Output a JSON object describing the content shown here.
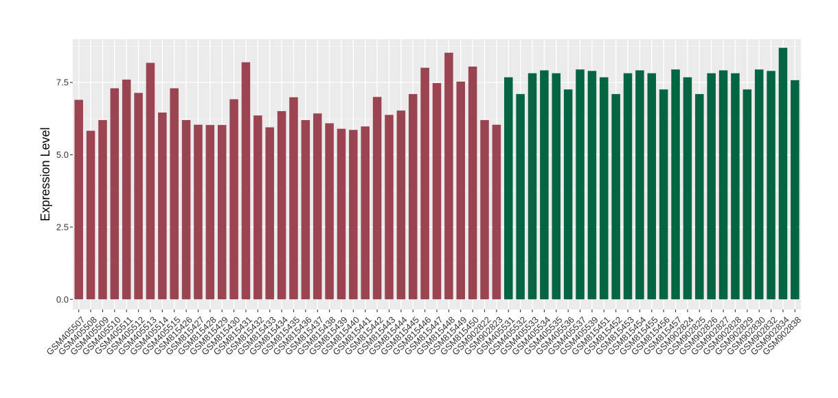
{
  "chart_data": {
    "type": "bar",
    "title": "",
    "xlabel": "",
    "ylabel": "Expression Level",
    "ylim": [
      -0.35,
      9.0
    ],
    "yticks": [
      0.0,
      2.5,
      5.0,
      7.5
    ],
    "ytick_labels": [
      "0.0",
      "2.5",
      "5.0",
      "7.5"
    ],
    "grid": true,
    "legend": "none",
    "colors": {
      "panel": "#EBEBEB",
      "grid_major": "#FFFFFF",
      "grid_minor": "#F5F5F5",
      "group_a": "#9A4451",
      "group_b": "#036541"
    },
    "categories": [
      "GSM405507",
      "GSM405508",
      "GSM405509",
      "GSM405510",
      "GSM405511",
      "GSM405512",
      "GSM405513",
      "GSM405514",
      "GSM405515",
      "GSM815426",
      "GSM815427",
      "GSM815428",
      "GSM815429",
      "GSM815430",
      "GSM815431",
      "GSM815432",
      "GSM815433",
      "GSM815434",
      "GSM815435",
      "GSM815436",
      "GSM815437",
      "GSM815438",
      "GSM815439",
      "GSM815440",
      "GSM815441",
      "GSM815442",
      "GSM815443",
      "GSM815444",
      "GSM815445",
      "GSM815446",
      "GSM815447",
      "GSM815448",
      "GSM815449",
      "GSM815450",
      "GSM902822",
      "GSM902823",
      "GSM405531",
      "GSM405532",
      "GSM405533",
      "GSM405534",
      "GSM405535",
      "GSM405536",
      "GSM405537",
      "GSM405539",
      "GSM815451",
      "GSM815452",
      "GSM815453",
      "GSM815454",
      "GSM815455",
      "GSM815456",
      "GSM815457",
      "GSM902824",
      "GSM902825",
      "GSM902826",
      "GSM902827",
      "GSM902828",
      "GSM902829",
      "GSM902830",
      "GSM902832",
      "GSM902834",
      "GSM902838"
    ],
    "values": [
      6.9,
      5.83,
      6.2,
      7.3,
      7.6,
      7.14,
      8.18,
      6.46,
      7.3,
      6.2,
      6.04,
      6.03,
      6.03,
      6.92,
      8.2,
      6.36,
      5.95,
      6.51,
      6.99,
      6.2,
      6.43,
      6.09,
      5.9,
      5.86,
      5.98,
      7.0,
      6.38,
      6.53,
      7.1,
      8.01,
      7.48,
      8.53,
      7.53,
      8.05,
      6.2,
      6.04,
      7.68,
      7.1,
      7.82,
      7.92,
      7.82,
      7.26,
      7.95,
      7.9,
      7.68,
      7.1,
      7.82,
      7.92,
      7.82,
      7.26,
      7.95,
      7.68,
      7.1,
      7.82,
      7.92,
      7.82,
      7.26,
      7.95,
      7.9,
      8.7,
      7.58
    ],
    "bar_groups": [
      "a",
      "a",
      "a",
      "a",
      "a",
      "a",
      "a",
      "a",
      "a",
      "a",
      "a",
      "a",
      "a",
      "a",
      "a",
      "a",
      "a",
      "a",
      "a",
      "a",
      "a",
      "a",
      "a",
      "a",
      "a",
      "a",
      "a",
      "a",
      "a",
      "a",
      "a",
      "a",
      "a",
      "a",
      "a",
      "a",
      "b",
      "b",
      "b",
      "b",
      "b",
      "b",
      "b",
      "b",
      "b",
      "b",
      "b",
      "b",
      "b",
      "b",
      "b",
      "b",
      "b",
      "b",
      "b",
      "b",
      "b",
      "b",
      "b",
      "b",
      "b"
    ]
  }
}
